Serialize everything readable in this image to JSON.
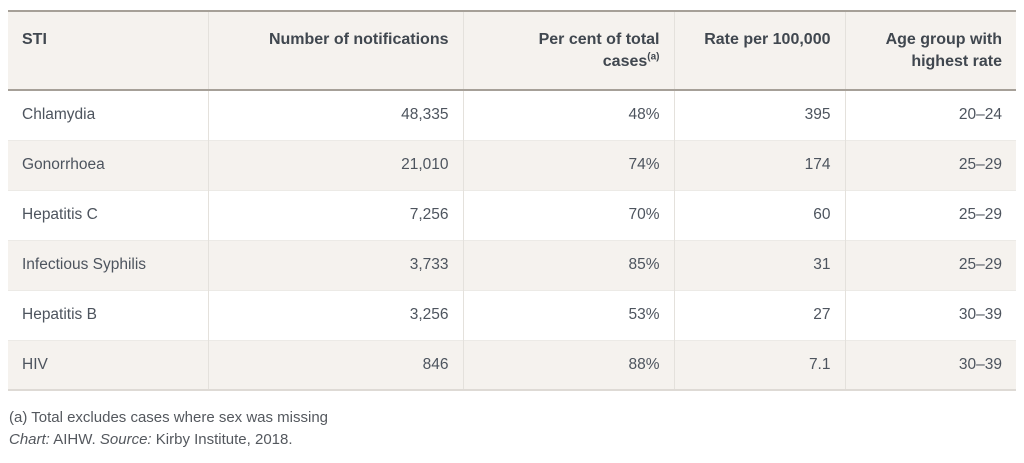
{
  "chart_data": {
    "type": "table",
    "columns": [
      {
        "key": "sti",
        "label": "STI",
        "align": "left"
      },
      {
        "key": "notifications",
        "label": "Number of notifications",
        "align": "right"
      },
      {
        "key": "percent-total-cases",
        "label": "Per cent of total cases",
        "superscript": "(a)",
        "align": "right"
      },
      {
        "key": "rate-per-100000",
        "label": "Rate per 100,000",
        "align": "right"
      },
      {
        "key": "age-group-highest-rate",
        "label": "Age group with highest rate",
        "align": "right"
      }
    ],
    "rows": [
      [
        "Chlamydia",
        "48,335",
        "48%",
        "395",
        "20–24"
      ],
      [
        "Gonorrhoea",
        "21,010",
        "74%",
        "174",
        "25–29"
      ],
      [
        "Hepatitis C",
        "7,256",
        "70%",
        "60",
        "25–29"
      ],
      [
        "Infectious Syphilis",
        "3,733",
        "85%",
        "31",
        "25–29"
      ],
      [
        "Hepatitis B",
        "3,256",
        "53%",
        "27",
        "30–39"
      ],
      [
        "HIV",
        "846",
        "88%",
        "7.1",
        "30–39"
      ]
    ]
  },
  "footnotes": {
    "note_a": "(a) Total excludes cases where sex was missing",
    "chart_label": "Chart:",
    "chart_value": "AIHW.",
    "source_label": "Source:",
    "source_value": "Kirby Institute, 2018."
  },
  "colors": {
    "header_background": "#f5f2ee",
    "zebra_row_background": "#f5f2ee",
    "strong_border": "#a6a098",
    "light_border": "#e4e1dc",
    "header_text": "#40474f",
    "body_text": "#4d545e",
    "footnote_text": "#54585e"
  }
}
